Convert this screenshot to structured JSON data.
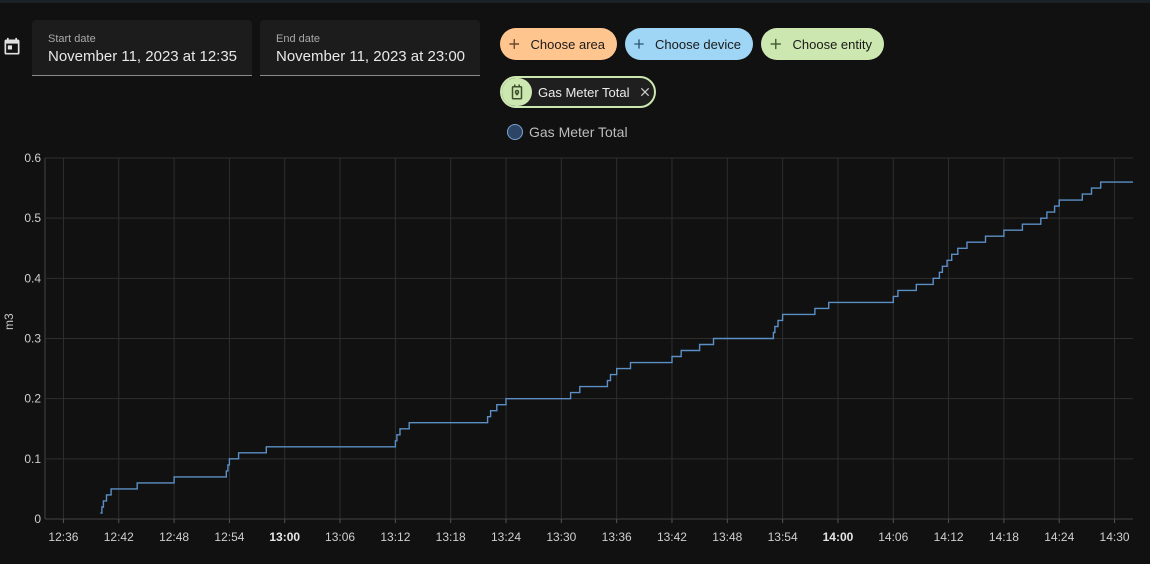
{
  "date_picker": {
    "icon": "calendar-icon",
    "start_label": "Start date",
    "start_value": "November 11, 2023 at 12:35",
    "end_label": "End date",
    "end_value": "November 11, 2023 at 23:00"
  },
  "target_pickers": {
    "area_label": "Choose area",
    "area_color": "#ffc58f",
    "device_label": "Choose device",
    "device_color": "#9fd6f5",
    "entity_label": "Choose entity",
    "entity_color": "#cde7b0"
  },
  "selected_entity": {
    "label": "Gas Meter Total",
    "icon": "meter-gas-icon",
    "remove_icon": "close-icon"
  },
  "chart_data": {
    "type": "line",
    "step": true,
    "ylabel": "m3",
    "ylim": [
      0,
      0.6
    ],
    "yticks": [
      "0",
      "0.1",
      "0.2",
      "0.3",
      "0.4",
      "0.5",
      "0.6"
    ],
    "yticks_values": [
      0,
      0.1,
      0.2,
      0.3,
      0.4,
      0.5,
      0.6
    ],
    "xlim": [
      "12:34",
      "14:32"
    ],
    "xticks": [
      {
        "label": "12:36",
        "time": "12:36",
        "bold": false
      },
      {
        "label": "12:42",
        "time": "12:42",
        "bold": false
      },
      {
        "label": "12:48",
        "time": "12:48",
        "bold": false
      },
      {
        "label": "12:54",
        "time": "12:54",
        "bold": false
      },
      {
        "label": "13:00",
        "time": "13:00",
        "bold": true
      },
      {
        "label": "13:06",
        "time": "13:06",
        "bold": false
      },
      {
        "label": "13:12",
        "time": "13:12",
        "bold": false
      },
      {
        "label": "13:18",
        "time": "13:18",
        "bold": false
      },
      {
        "label": "13:24",
        "time": "13:24",
        "bold": false
      },
      {
        "label": "13:30",
        "time": "13:30",
        "bold": false
      },
      {
        "label": "13:36",
        "time": "13:36",
        "bold": false
      },
      {
        "label": "13:42",
        "time": "13:42",
        "bold": false
      },
      {
        "label": "13:48",
        "time": "13:48",
        "bold": false
      },
      {
        "label": "13:54",
        "time": "13:54",
        "bold": false
      },
      {
        "label": "14:00",
        "time": "14:00",
        "bold": true
      },
      {
        "label": "14:06",
        "time": "14:06",
        "bold": false
      },
      {
        "label": "14:12",
        "time": "14:12",
        "bold": false
      },
      {
        "label": "14:18",
        "time": "14:18",
        "bold": false
      },
      {
        "label": "14:24",
        "time": "14:24",
        "bold": false
      },
      {
        "label": "14:30",
        "time": "14:30",
        "bold": false
      }
    ],
    "grid": true,
    "legend_position": "top-center",
    "series": [
      {
        "name": "Gas Meter Total",
        "color": "#5b8fc5",
        "points": [
          [
            "12:40:00",
            0.01
          ],
          [
            "12:40:10",
            0.02
          ],
          [
            "12:40:20",
            0.03
          ],
          [
            "12:40:40",
            0.04
          ],
          [
            "12:41:10",
            0.05
          ],
          [
            "12:44:00",
            0.06
          ],
          [
            "12:48:00",
            0.07
          ],
          [
            "12:53:40",
            0.08
          ],
          [
            "12:53:50",
            0.09
          ],
          [
            "12:54:00",
            0.1
          ],
          [
            "12:55:00",
            0.11
          ],
          [
            "12:58:00",
            0.12
          ],
          [
            "13:12:00",
            0.13
          ],
          [
            "13:12:10",
            0.14
          ],
          [
            "13:12:30",
            0.15
          ],
          [
            "13:13:30",
            0.16
          ],
          [
            "13:22:00",
            0.17
          ],
          [
            "13:22:20",
            0.18
          ],
          [
            "13:23:00",
            0.19
          ],
          [
            "13:24:00",
            0.2
          ],
          [
            "13:31:00",
            0.21
          ],
          [
            "13:32:00",
            0.22
          ],
          [
            "13:35:00",
            0.23
          ],
          [
            "13:35:20",
            0.24
          ],
          [
            "13:36:00",
            0.25
          ],
          [
            "13:37:30",
            0.26
          ],
          [
            "13:42:00",
            0.27
          ],
          [
            "13:43:00",
            0.28
          ],
          [
            "13:45:00",
            0.29
          ],
          [
            "13:46:30",
            0.3
          ],
          [
            "13:53:00",
            0.31
          ],
          [
            "13:53:10",
            0.32
          ],
          [
            "13:53:30",
            0.33
          ],
          [
            "13:54:00",
            0.34
          ],
          [
            "13:57:30",
            0.35
          ],
          [
            "13:59:00",
            0.36
          ],
          [
            "14:06:00",
            0.37
          ],
          [
            "14:06:30",
            0.38
          ],
          [
            "14:08:30",
            0.39
          ],
          [
            "14:10:20",
            0.4
          ],
          [
            "14:11:00",
            0.41
          ],
          [
            "14:11:20",
            0.42
          ],
          [
            "14:11:50",
            0.43
          ],
          [
            "14:12:20",
            0.44
          ],
          [
            "14:13:00",
            0.45
          ],
          [
            "14:14:00",
            0.46
          ],
          [
            "14:16:00",
            0.47
          ],
          [
            "14:18:00",
            0.48
          ],
          [
            "14:20:00",
            0.49
          ],
          [
            "14:22:00",
            0.5
          ],
          [
            "14:22:40",
            0.51
          ],
          [
            "14:23:30",
            0.52
          ],
          [
            "14:24:00",
            0.53
          ],
          [
            "14:26:30",
            0.54
          ],
          [
            "14:27:30",
            0.55
          ],
          [
            "14:28:30",
            0.56
          ],
          [
            "14:32:00",
            0.56
          ]
        ]
      }
    ]
  }
}
